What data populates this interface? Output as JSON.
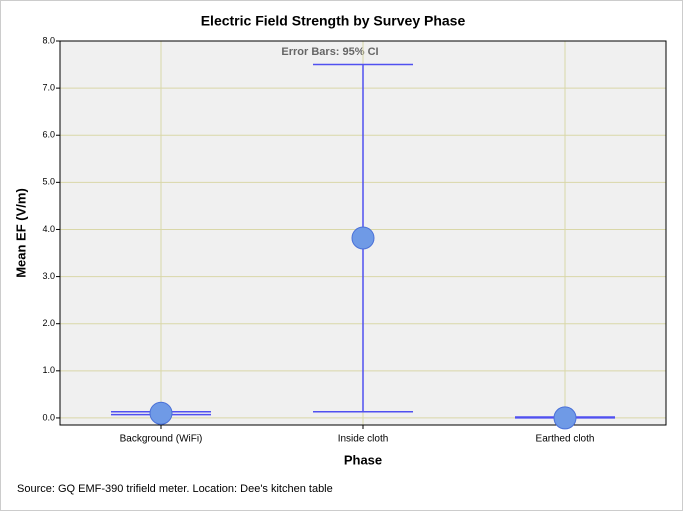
{
  "chart_data": {
    "type": "errorbar",
    "title": "Electric Field Strength by Survey Phase",
    "x_label": "Phase",
    "y_label": "Mean EF (V/m)",
    "annotation": "Error Bars: 95% CI",
    "source": "Source: GQ EMF-390 trifield meter. Location: Dee's kitchen table",
    "categories": [
      "Background (WiFi)",
      "Inside cloth",
      "Earthed cloth"
    ],
    "values": [
      0.1,
      3.82,
      0.0
    ],
    "ci_lower": [
      0.07,
      0.13,
      0.0
    ],
    "ci_upper": [
      0.13,
      7.5,
      0.02
    ],
    "color": "#6f9ae6",
    "error_color": "#5050f0",
    "ylim": [
      -0.15,
      8.0
    ],
    "yticks": [
      {
        "value": 0,
        "label": "0.0"
      },
      {
        "value": 1,
        "label": "1.0"
      },
      {
        "value": 2,
        "label": "2.0"
      },
      {
        "value": 3,
        "label": "3.0"
      },
      {
        "value": 4,
        "label": "4.0"
      },
      {
        "value": 5,
        "label": "5.0"
      },
      {
        "value": 6,
        "label": "6.0"
      },
      {
        "value": 7,
        "label": "7.0"
      },
      {
        "value": 8,
        "label": "8.0"
      }
    ],
    "grid": true
  }
}
